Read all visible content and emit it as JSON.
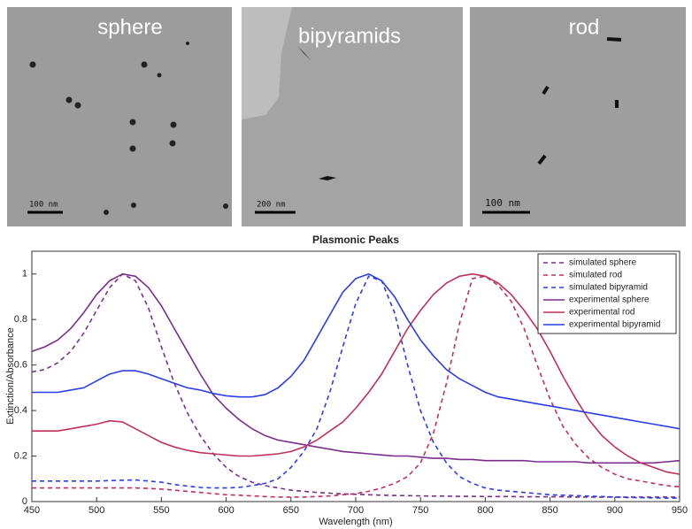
{
  "images": [
    {
      "label": "sphere",
      "scale_bar": "100 nm"
    },
    {
      "label": "bipyramids",
      "scale_bar": "200 nm"
    },
    {
      "label": "rod",
      "scale_bar": "100 nm"
    }
  ],
  "chart_data": {
    "type": "line",
    "title": "Plasmonic Peaks",
    "x_label": "Wavelength (nm)",
    "y_label": "Extinction/Absorbance",
    "x": [
      450,
      460,
      470,
      480,
      490,
      500,
      510,
      520,
      530,
      540,
      550,
      560,
      570,
      580,
      590,
      600,
      610,
      620,
      630,
      640,
      650,
      660,
      670,
      680,
      690,
      700,
      710,
      720,
      730,
      740,
      750,
      760,
      770,
      780,
      790,
      800,
      810,
      820,
      830,
      840,
      850,
      860,
      870,
      880,
      890,
      900,
      910,
      920,
      930,
      940,
      950
    ],
    "xlim": [
      450,
      950
    ],
    "xticks": [
      450,
      500,
      550,
      600,
      650,
      700,
      750,
      800,
      850,
      900,
      950
    ],
    "ylim": [
      0,
      1.1
    ],
    "yticks": [
      0,
      0.2,
      0.4,
      0.6,
      0.8,
      1
    ],
    "legend": "upper right",
    "series": [
      {
        "name": "simulated sphere",
        "color": "#7b2d8e",
        "dashed": true,
        "values": [
          0.57,
          0.58,
          0.61,
          0.66,
          0.74,
          0.84,
          0.94,
          1.0,
          0.97,
          0.85,
          0.68,
          0.52,
          0.39,
          0.29,
          0.21,
          0.15,
          0.11,
          0.085,
          0.07,
          0.06,
          0.05,
          0.045,
          0.04,
          0.037,
          0.034,
          0.032,
          0.03,
          0.028,
          0.027,
          0.026,
          0.025,
          0.024,
          0.024,
          0.023,
          0.023,
          0.022,
          0.022,
          0.022,
          0.021,
          0.021,
          0.021,
          0.021,
          0.02,
          0.02,
          0.02,
          0.02,
          0.02,
          0.02,
          0.02,
          0.02,
          0.02
        ]
      },
      {
        "name": "simulated rod",
        "color": "#c0305a",
        "dashed": true,
        "values": [
          0.06,
          0.06,
          0.06,
          0.06,
          0.06,
          0.06,
          0.06,
          0.06,
          0.06,
          0.058,
          0.055,
          0.05,
          0.045,
          0.04,
          0.035,
          0.03,
          0.028,
          0.025,
          0.022,
          0.02,
          0.02,
          0.02,
          0.022,
          0.025,
          0.03,
          0.035,
          0.045,
          0.06,
          0.08,
          0.11,
          0.17,
          0.3,
          0.52,
          0.78,
          0.98,
          0.99,
          0.95,
          0.88,
          0.76,
          0.6,
          0.45,
          0.33,
          0.25,
          0.19,
          0.15,
          0.12,
          0.1,
          0.09,
          0.08,
          0.07,
          0.065
        ]
      },
      {
        "name": "simulated bipyramid",
        "color": "#2a3ee8",
        "dashed": true,
        "values": [
          0.09,
          0.09,
          0.09,
          0.09,
          0.09,
          0.09,
          0.092,
          0.094,
          0.095,
          0.09,
          0.085,
          0.075,
          0.068,
          0.062,
          0.06,
          0.06,
          0.062,
          0.07,
          0.08,
          0.1,
          0.15,
          0.22,
          0.32,
          0.48,
          0.68,
          0.87,
          0.99,
          0.97,
          0.83,
          0.6,
          0.4,
          0.26,
          0.17,
          0.11,
          0.08,
          0.06,
          0.05,
          0.045,
          0.04,
          0.035,
          0.03,
          0.028,
          0.026,
          0.024,
          0.022,
          0.02,
          0.018,
          0.017,
          0.016,
          0.015,
          0.015
        ]
      },
      {
        "name": "experimental sphere",
        "color": "#7b2d8e",
        "dashed": false,
        "values": [
          0.66,
          0.68,
          0.71,
          0.76,
          0.83,
          0.91,
          0.97,
          1.0,
          0.99,
          0.94,
          0.86,
          0.76,
          0.66,
          0.56,
          0.47,
          0.41,
          0.36,
          0.32,
          0.29,
          0.27,
          0.26,
          0.25,
          0.24,
          0.23,
          0.22,
          0.215,
          0.21,
          0.205,
          0.2,
          0.2,
          0.195,
          0.19,
          0.19,
          0.185,
          0.185,
          0.18,
          0.18,
          0.18,
          0.18,
          0.175,
          0.175,
          0.175,
          0.175,
          0.17,
          0.17,
          0.17,
          0.17,
          0.17,
          0.17,
          0.175,
          0.18
        ]
      },
      {
        "name": "experimental rod",
        "color": "#c0305a",
        "dashed": false,
        "values": [
          0.31,
          0.31,
          0.31,
          0.32,
          0.33,
          0.34,
          0.355,
          0.35,
          0.32,
          0.29,
          0.26,
          0.24,
          0.225,
          0.215,
          0.21,
          0.205,
          0.2,
          0.2,
          0.205,
          0.21,
          0.22,
          0.24,
          0.27,
          0.31,
          0.35,
          0.41,
          0.48,
          0.56,
          0.66,
          0.76,
          0.84,
          0.91,
          0.96,
          0.99,
          1.0,
          0.99,
          0.96,
          0.91,
          0.84,
          0.76,
          0.66,
          0.55,
          0.45,
          0.36,
          0.29,
          0.24,
          0.2,
          0.17,
          0.15,
          0.13,
          0.12
        ]
      },
      {
        "name": "experimental bipyramid",
        "color": "#2a3ee8",
        "dashed": false,
        "values": [
          0.48,
          0.48,
          0.48,
          0.49,
          0.5,
          0.53,
          0.56,
          0.575,
          0.575,
          0.56,
          0.54,
          0.52,
          0.5,
          0.49,
          0.475,
          0.465,
          0.46,
          0.46,
          0.47,
          0.5,
          0.55,
          0.62,
          0.72,
          0.82,
          0.92,
          0.98,
          1.0,
          0.97,
          0.9,
          0.8,
          0.71,
          0.64,
          0.58,
          0.54,
          0.51,
          0.48,
          0.46,
          0.45,
          0.44,
          0.43,
          0.42,
          0.41,
          0.4,
          0.39,
          0.38,
          0.37,
          0.36,
          0.35,
          0.34,
          0.33,
          0.32
        ]
      }
    ]
  }
}
